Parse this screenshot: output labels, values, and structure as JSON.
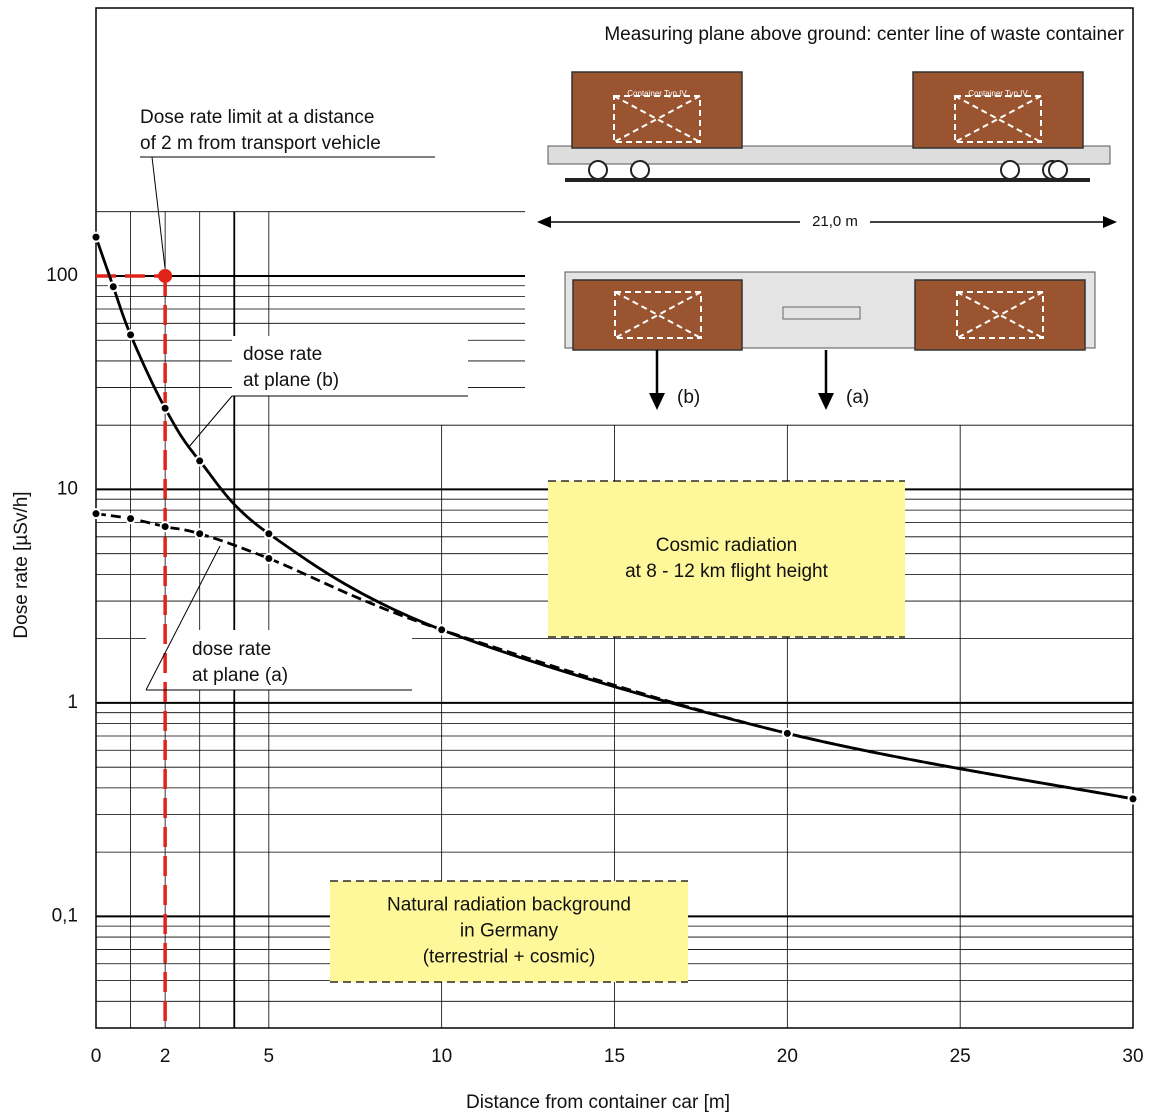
{
  "chart_data": {
    "type": "line",
    "xlabel": "Distance from container car [m]",
    "ylabel": "Dose rate [µSv/h]",
    "xlim": [
      0,
      30
    ],
    "ylim": [
      0.03,
      1800
    ],
    "log_y": true,
    "grid": true,
    "xticks": [
      0,
      2,
      5,
      10,
      15,
      20,
      25,
      30
    ],
    "yticks": [
      {
        "value": 0.1,
        "label": "0,1"
      },
      1,
      10,
      100
    ],
    "x_minor_ticks": [
      1,
      3,
      4
    ],
    "y_minor_ticks": [
      0.04,
      0.05,
      0.06,
      0.07,
      0.08,
      0.09,
      0.2,
      0.3,
      0.4,
      0.5,
      0.6,
      0.7,
      0.8,
      0.9,
      2,
      3,
      4,
      5,
      6,
      7,
      8,
      9,
      20,
      30,
      40,
      50,
      60,
      70,
      80,
      90,
      200
    ],
    "series": [
      {
        "label": [
          "dose rate",
          "at plane (b)"
        ],
        "color": "#000000",
        "dashed": false,
        "x": [
          0,
          0.5,
          1,
          2,
          3,
          5,
          10,
          20,
          30
        ],
        "values": [
          152,
          89,
          53,
          24,
          13.6,
          6.2,
          2.2,
          0.72,
          0.355
        ]
      },
      {
        "label": [
          "dose rate",
          "at plane (a)"
        ],
        "color": "#000000",
        "dashed": true,
        "x": [
          0,
          1,
          2,
          3,
          5,
          10,
          20,
          30
        ],
        "values": [
          7.7,
          7.3,
          6.7,
          6.2,
          4.75,
          2.2,
          0.72,
          0.355
        ]
      }
    ],
    "limit": {
      "x": 2,
      "y": 100,
      "color": "#e2231a",
      "label": [
        "Dose rate limit at a distance",
        "of 2 m from transport vehicle"
      ]
    },
    "regions": [
      {
        "label": [
          "Cosmic radiation",
          "at 8 - 12 km flight height"
        ]
      },
      {
        "label": [
          "Natural radiation background",
          "in Germany",
          "(terrestrial + cosmic)"
        ]
      }
    ],
    "illustration": {
      "caption": "Measuring plane above ground: center line of waste container",
      "container_label": "Container Typ IV",
      "length": "21,0 m",
      "plane_b": "(b)",
      "plane_a": "(a)"
    }
  }
}
